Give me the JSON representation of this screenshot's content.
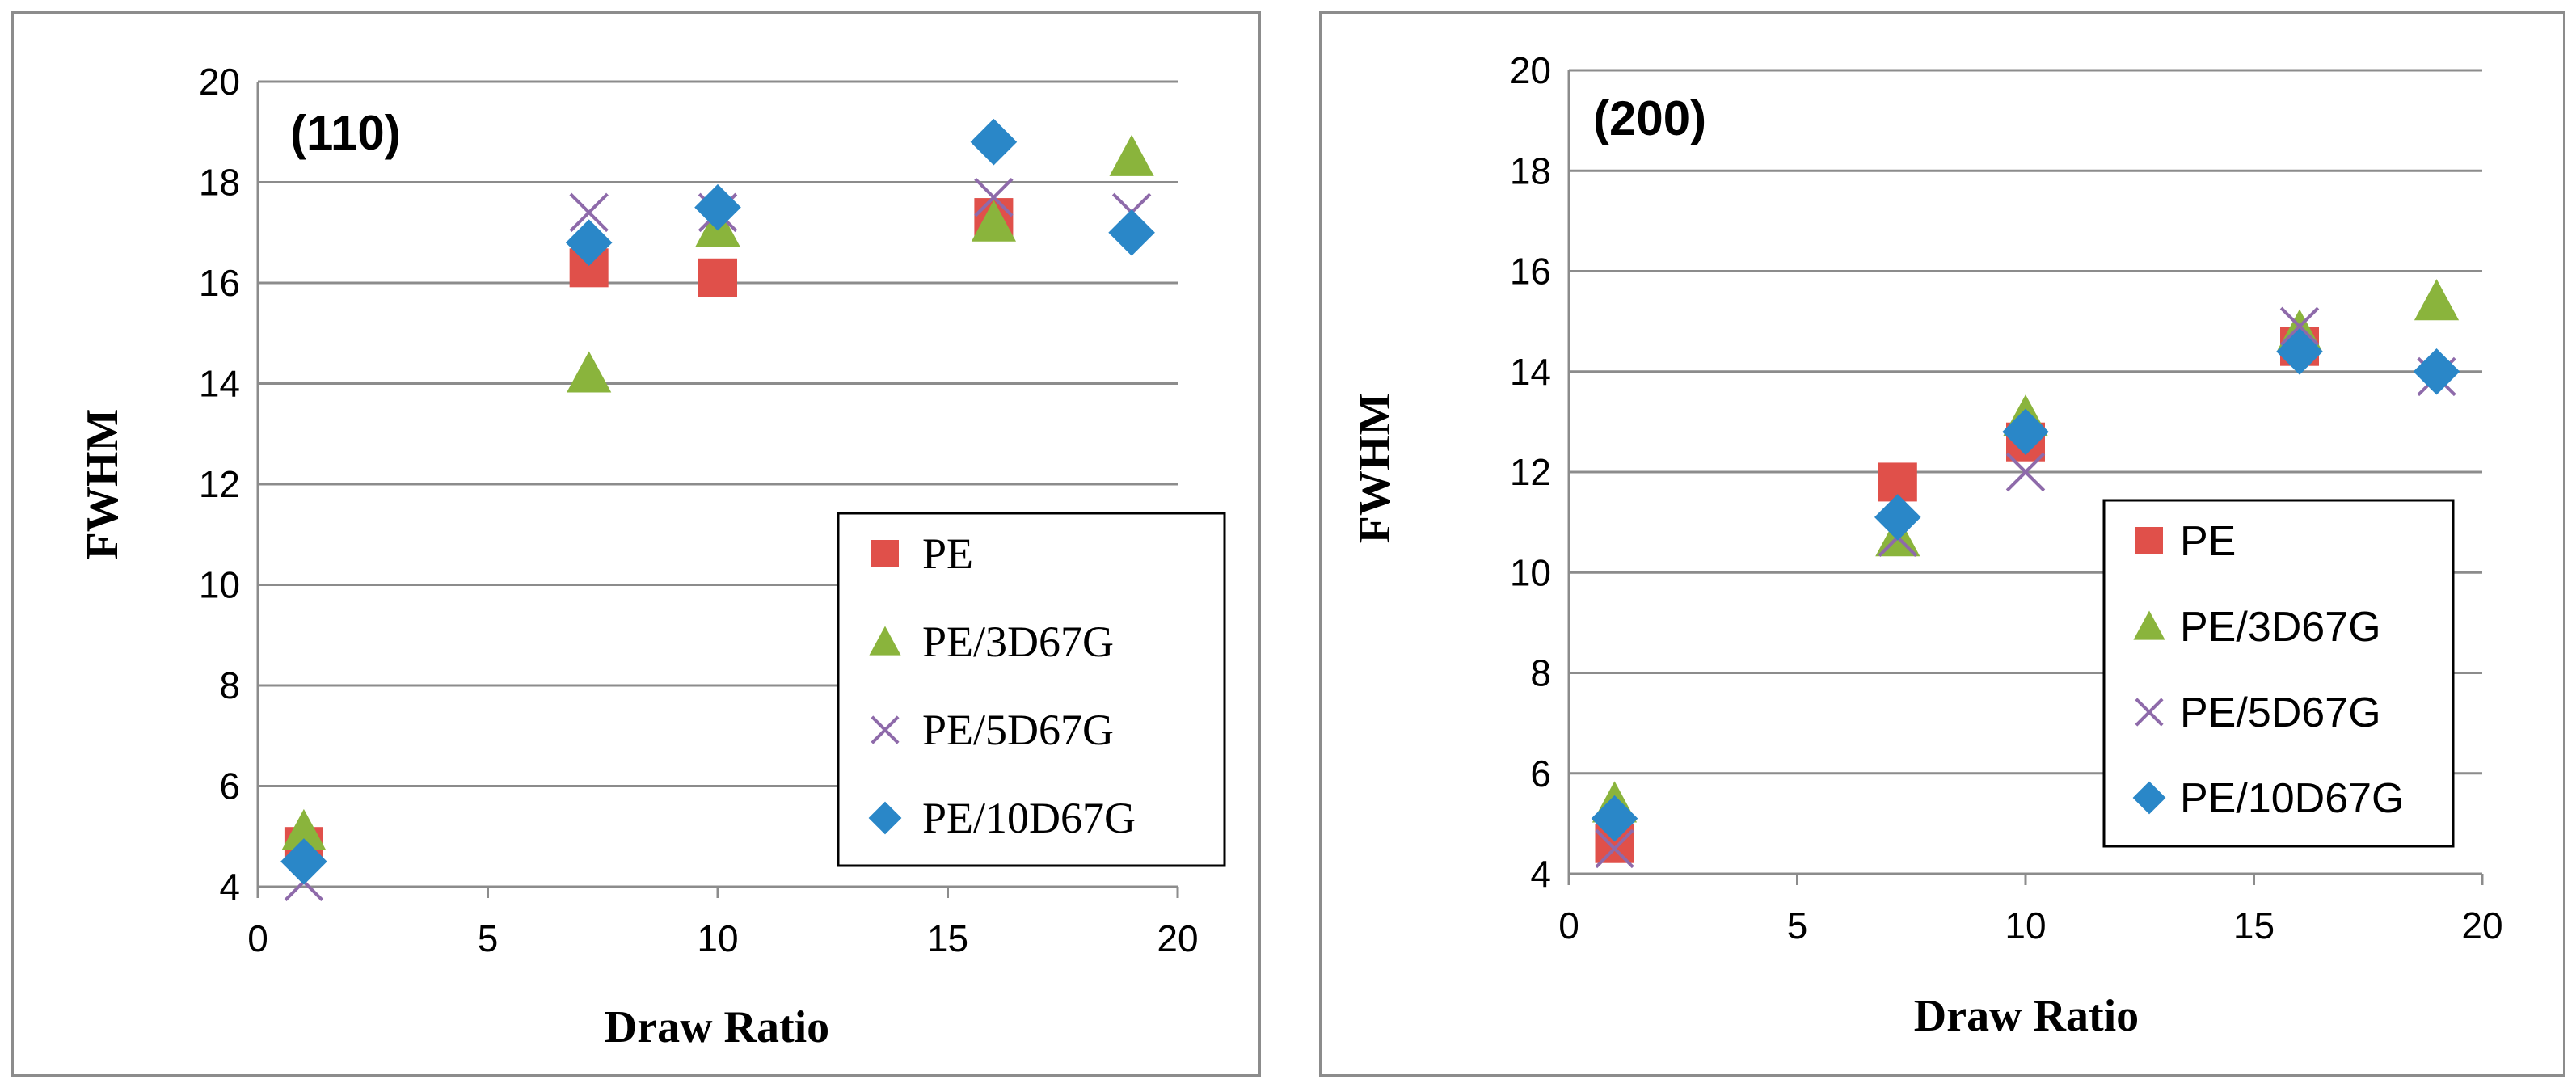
{
  "series_styles": [
    {
      "name": "PE",
      "marker": "square",
      "color": "#e0504a"
    },
    {
      "name": "PE/3D67G",
      "marker": "triangle",
      "color": "#8ab43c"
    },
    {
      "name": "PE/5D67G",
      "marker": "x",
      "color": "#8e6aaa"
    },
    {
      "name": "PE/10D67G",
      "marker": "diamond",
      "color": "#2a87c8"
    }
  ],
  "chart_data": [
    {
      "type": "scatter",
      "panel_label": "(110)",
      "xlabel": "Draw Ratio",
      "ylabel": "FWHM",
      "xlim": [
        0,
        20
      ],
      "ylim": [
        4,
        20
      ],
      "xticks": [
        0,
        5,
        10,
        15,
        20
      ],
      "yticks": [
        4,
        6,
        8,
        10,
        12,
        14,
        16,
        18,
        20
      ],
      "grid": "horizontal",
      "legend_position": "bottom-right",
      "series": [
        {
          "name": "PE",
          "x": [
            1,
            7.2,
            10,
            16
          ],
          "y": [
            4.8,
            16.3,
            16.1,
            17.3
          ]
        },
        {
          "name": "PE/3D67G",
          "x": [
            1,
            7.2,
            10,
            16,
            19
          ],
          "y": [
            5.1,
            14.2,
            17.1,
            17.2,
            18.5
          ]
        },
        {
          "name": "PE/5D67G",
          "x": [
            1,
            7.2,
            10,
            16,
            19
          ],
          "y": [
            4.1,
            17.4,
            17.4,
            17.7,
            17.4
          ]
        },
        {
          "name": "PE/10D67G",
          "x": [
            1,
            7.2,
            10,
            16,
            19
          ],
          "y": [
            4.5,
            16.8,
            17.5,
            18.8,
            17.0
          ]
        }
      ]
    },
    {
      "type": "scatter",
      "panel_label": "(200)",
      "xlabel": "Draw Ratio",
      "ylabel": "FWHM",
      "xlim": [
        0,
        20
      ],
      "ylim": [
        4,
        20
      ],
      "xticks": [
        0,
        5,
        10,
        15,
        20
      ],
      "yticks": [
        4,
        6,
        8,
        10,
        12,
        14,
        16,
        18,
        20
      ],
      "grid": "horizontal",
      "legend_position": "bottom-right",
      "series": [
        {
          "name": "PE",
          "x": [
            1,
            7.2,
            10,
            16
          ],
          "y": [
            4.6,
            11.8,
            12.6,
            14.5
          ]
        },
        {
          "name": "PE/3D67G",
          "x": [
            1,
            7.2,
            10,
            16,
            19
          ],
          "y": [
            5.4,
            10.7,
            13.1,
            14.8,
            15.4
          ]
        },
        {
          "name": "PE/5D67G",
          "x": [
            1,
            7.2,
            10,
            16,
            19
          ],
          "y": [
            4.5,
            10.7,
            12.0,
            14.9,
            13.9
          ]
        },
        {
          "name": "PE/10D67G",
          "x": [
            1,
            7.2,
            10,
            16,
            19
          ],
          "y": [
            5.1,
            11.1,
            12.8,
            14.4,
            14.0
          ]
        }
      ]
    }
  ]
}
